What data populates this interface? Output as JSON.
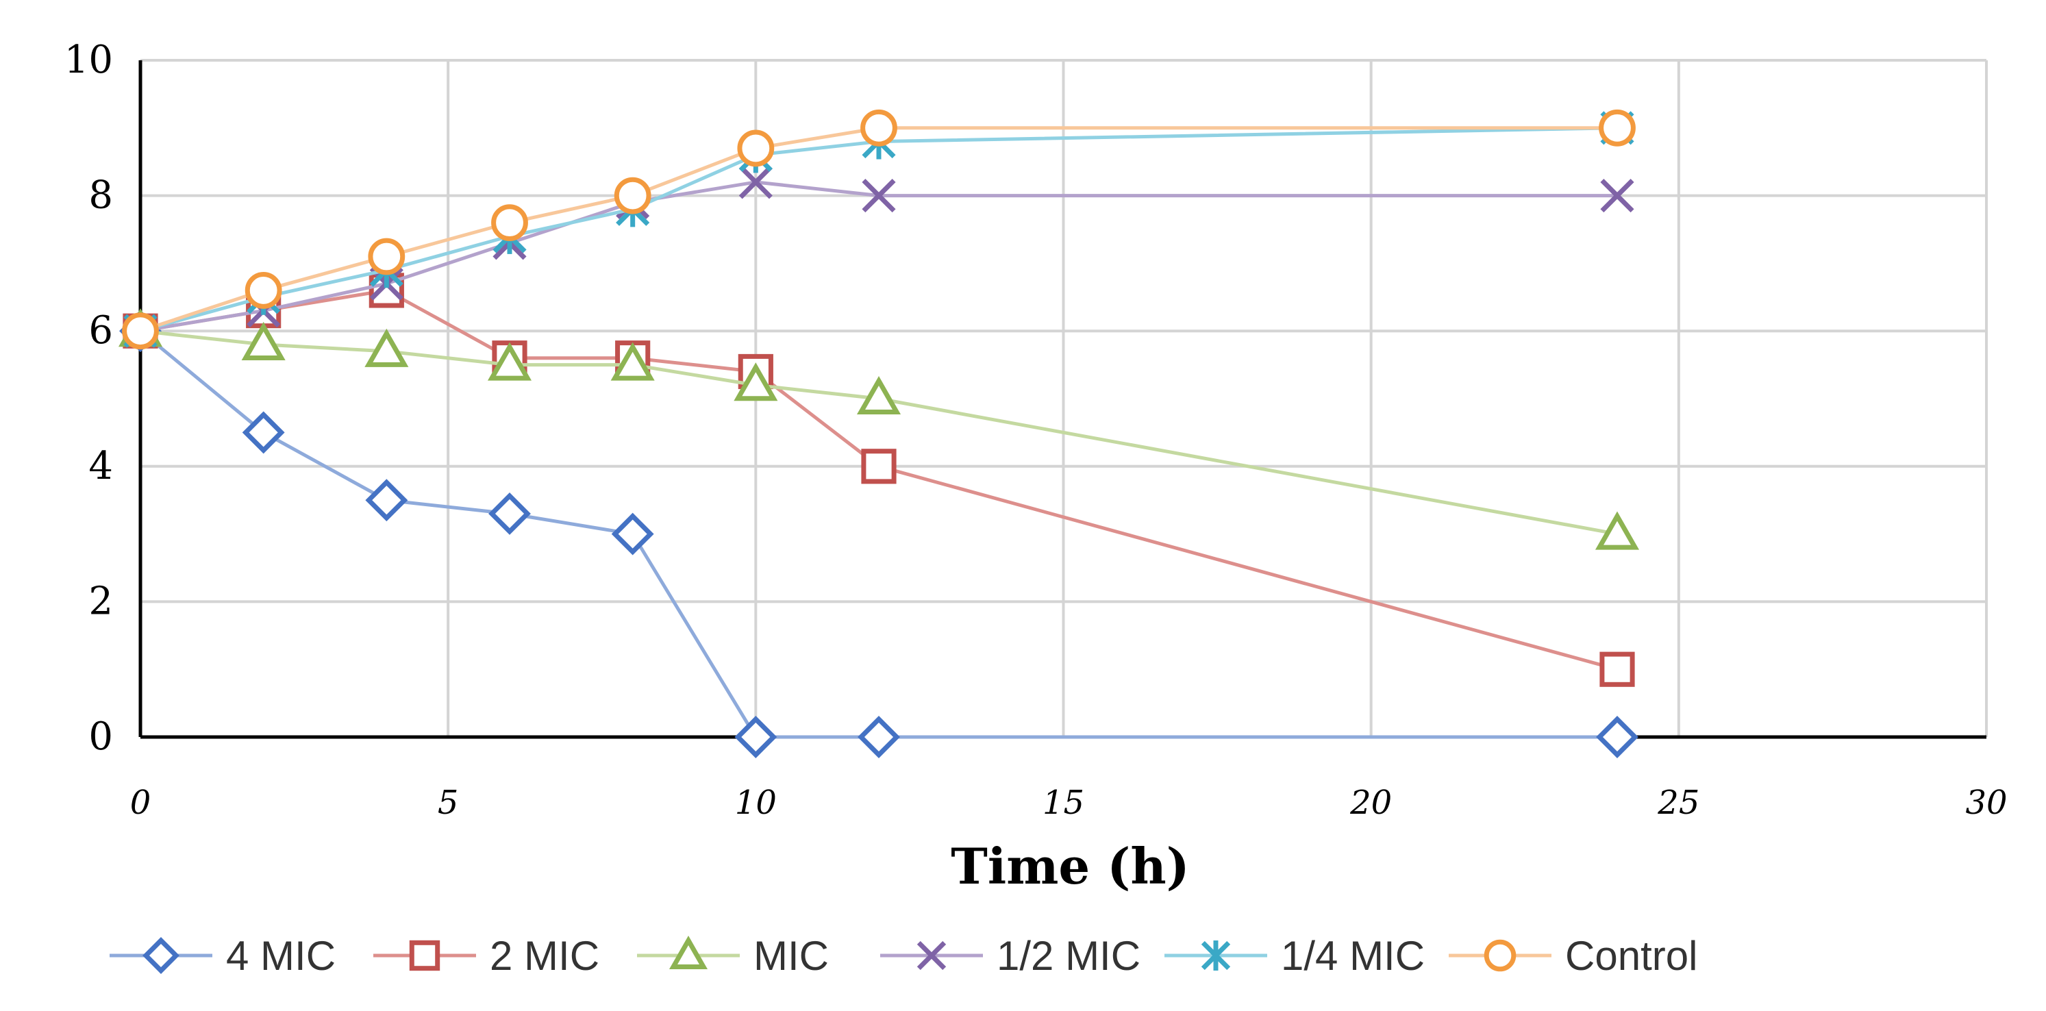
{
  "chart_data": {
    "type": "line",
    "title": "",
    "xlabel": "Time (h)",
    "ylabel": "",
    "xlim": [
      0,
      30
    ],
    "ylim": [
      0,
      10
    ],
    "xticks": [
      0,
      5,
      10,
      15,
      20,
      25,
      30
    ],
    "yticks": [
      0,
      2,
      4,
      6,
      8,
      10
    ],
    "xtick_labels": [
      "0",
      "5",
      "10",
      "15",
      "20",
      "25",
      "30"
    ],
    "ytick_labels": [
      "0",
      "2",
      "4",
      "6",
      "8",
      "10"
    ],
    "grid": true,
    "legend_position": "bottom",
    "series": [
      {
        "name": "4 MIC",
        "color": "#4472c4",
        "line_color": "#8eaadb",
        "marker": "diamond",
        "x": [
          0,
          2,
          4,
          6,
          8,
          10,
          12,
          24
        ],
        "y": [
          6,
          4.5,
          3.5,
          3.3,
          3,
          0,
          0,
          0
        ]
      },
      {
        "name": "2 MIC",
        "color": "#c0504d",
        "line_color": "#dd8f8c",
        "marker": "square",
        "x": [
          0,
          2,
          4,
          6,
          8,
          10,
          12,
          24
        ],
        "y": [
          6,
          6.3,
          6.6,
          5.6,
          5.6,
          5.4,
          4,
          1
        ]
      },
      {
        "name": "MIC",
        "color": "#8db352",
        "line_color": "#c4d9a0",
        "marker": "triangle",
        "x": [
          0,
          2,
          4,
          6,
          8,
          10,
          12,
          24
        ],
        "y": [
          6,
          5.8,
          5.7,
          5.5,
          5.5,
          5.2,
          5,
          3
        ]
      },
      {
        "name": "1/2 MIC",
        "color": "#7f63a6",
        "line_color": "#b3a2cc",
        "marker": "x",
        "x": [
          0,
          2,
          4,
          6,
          8,
          10,
          12,
          24
        ],
        "y": [
          6,
          6.3,
          6.7,
          7.3,
          7.9,
          8.2,
          8,
          8
        ]
      },
      {
        "name": "1/4 MIC",
        "color": "#3aa8c6",
        "line_color": "#8fd1e3",
        "marker": "star",
        "x": [
          0,
          2,
          4,
          6,
          8,
          10,
          12,
          24
        ],
        "y": [
          6,
          6.5,
          6.9,
          7.4,
          7.8,
          8.6,
          8.8,
          9
        ]
      },
      {
        "name": "Control",
        "color": "#f39a3e",
        "line_color": "#f8c79a",
        "marker": "circle",
        "x": [
          0,
          2,
          4,
          6,
          8,
          10,
          12,
          24
        ],
        "y": [
          6,
          6.6,
          7.1,
          7.6,
          8,
          8.7,
          9,
          9
        ]
      }
    ]
  }
}
